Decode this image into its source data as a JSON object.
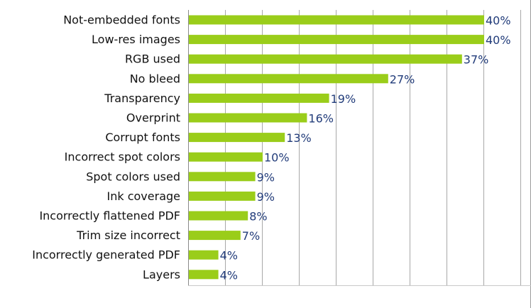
{
  "chart_data": {
    "type": "bar",
    "orientation": "horizontal",
    "title": "",
    "xlabel": "",
    "ylabel": "",
    "categories": [
      "Not-embedded fonts",
      "Low-res images",
      "RGB used",
      "No bleed",
      "Transparency",
      "Overprint",
      "Corrupt fonts",
      "Incorrect spot colors",
      "Spot colors used",
      "Ink coverage",
      "Incorrectly flattened PDF",
      "Trim size incorrect",
      "Incorrectly generated PDF",
      "Layers"
    ],
    "values": [
      40,
      40,
      37,
      27,
      19,
      16,
      13,
      10,
      9,
      9,
      8,
      7,
      4,
      4
    ],
    "value_labels": [
      "40%",
      "40%",
      "37%",
      "27%",
      "19%",
      "16%",
      "13%",
      "10%",
      "9%",
      "9%",
      "8%",
      "7%",
      "4%",
      "4%"
    ],
    "xlim": [
      0,
      45
    ],
    "grid": true,
    "grid_interval": 5,
    "bar_color": "#9acd1a",
    "label_color": "#223c7a"
  }
}
